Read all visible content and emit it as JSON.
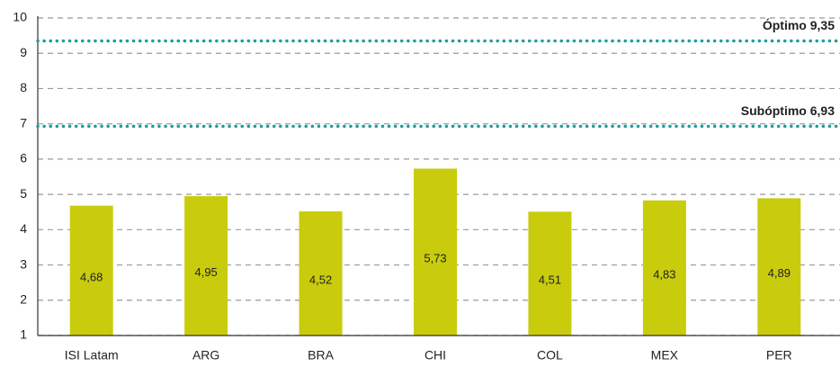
{
  "chart_data": {
    "type": "bar",
    "categories": [
      "ISI Latam",
      "ARG",
      "BRA",
      "CHI",
      "COL",
      "MEX",
      "PER"
    ],
    "values": [
      4.68,
      4.95,
      4.52,
      5.73,
      4.51,
      4.83,
      4.89
    ],
    "value_labels": [
      "4,68",
      "4,95",
      "4,52",
      "5,73",
      "4,51",
      "4,83",
      "4,89"
    ],
    "color": "#c8cc0c",
    "ylim": [
      1,
      10
    ],
    "yticks": [
      1,
      2,
      3,
      4,
      5,
      6,
      7,
      8,
      9,
      10
    ],
    "grid": true,
    "reference_lines": [
      {
        "label": "Óptimo 9,35",
        "value": 9.35,
        "color": "#1a9fa0"
      },
      {
        "label": "Subóptimo 6,93",
        "value": 6.93,
        "color": "#1a9fa0"
      }
    ]
  }
}
